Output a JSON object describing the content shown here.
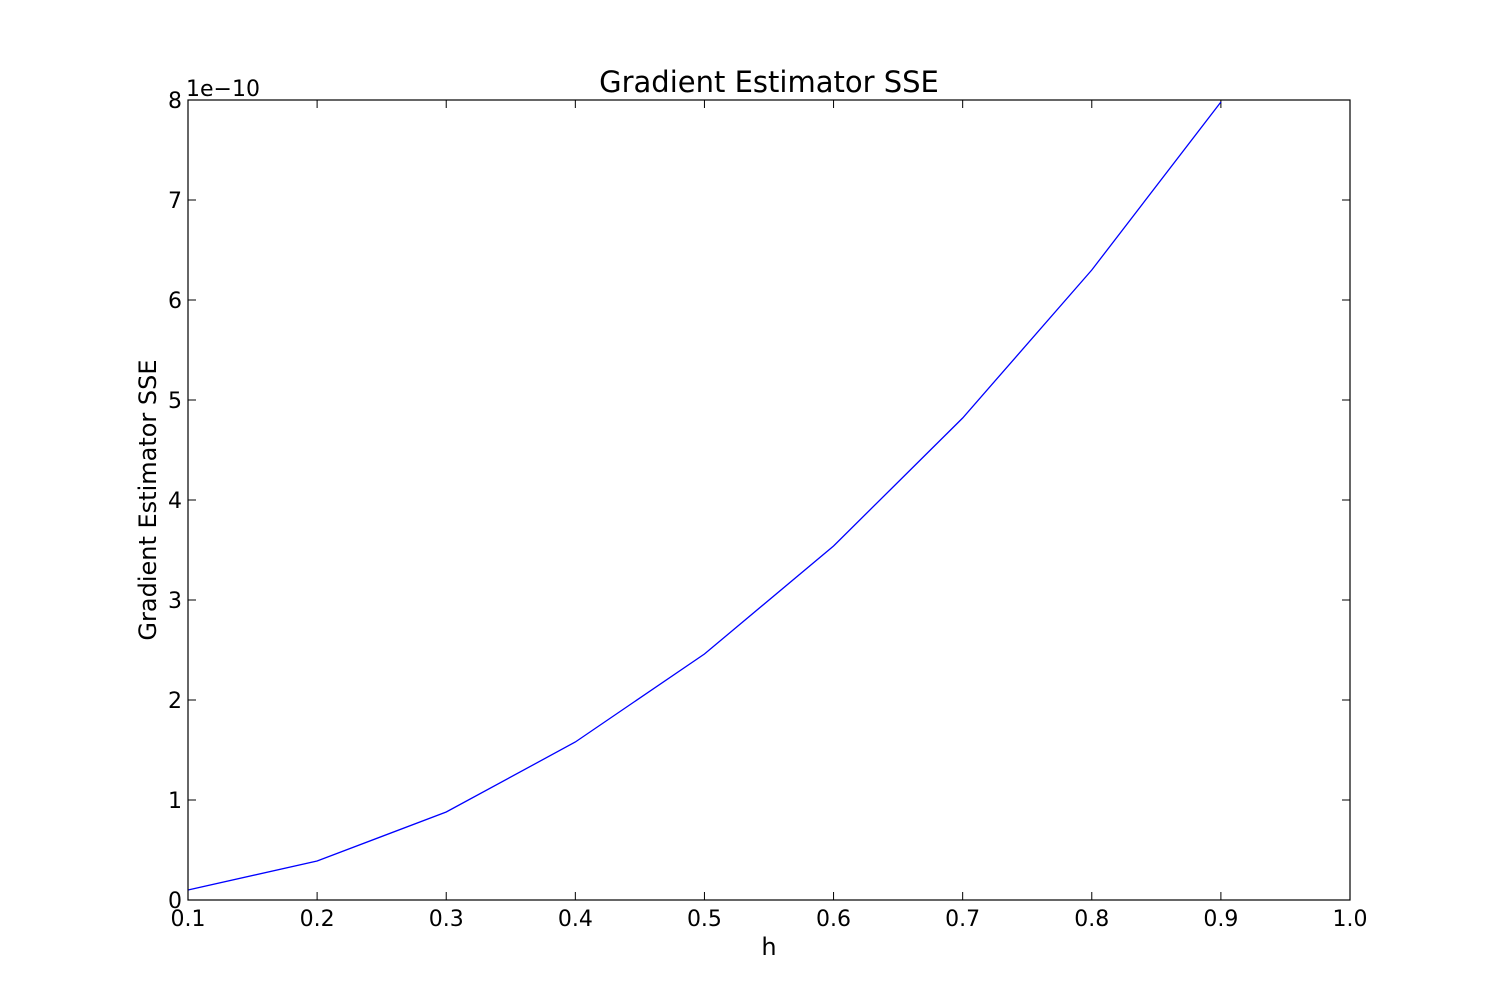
{
  "chart_data": {
    "type": "line",
    "title": "Gradient Estimator SSE",
    "xlabel": "h",
    "ylabel": "Gradient Estimator SSE",
    "y_offset_label": "1e−10",
    "xlim": [
      0.1,
      1.0
    ],
    "ylim": [
      0,
      8
    ],
    "xticks": [
      "0.1",
      "0.2",
      "0.3",
      "0.4",
      "0.5",
      "0.6",
      "0.7",
      "0.8",
      "0.9",
      "1.0"
    ],
    "yticks": [
      "0",
      "1",
      "2",
      "3",
      "4",
      "5",
      "6",
      "7",
      "8"
    ],
    "grid": false,
    "legend": "none",
    "line_color": "#0000ff",
    "series": [
      {
        "x": [
          0.1,
          0.2,
          0.3,
          0.4,
          0.5,
          0.6,
          0.7,
          0.8,
          0.9
        ],
        "y": [
          0.1,
          0.39,
          0.88,
          1.58,
          2.46,
          3.54,
          4.82,
          6.3,
          7.98
        ]
      }
    ]
  }
}
